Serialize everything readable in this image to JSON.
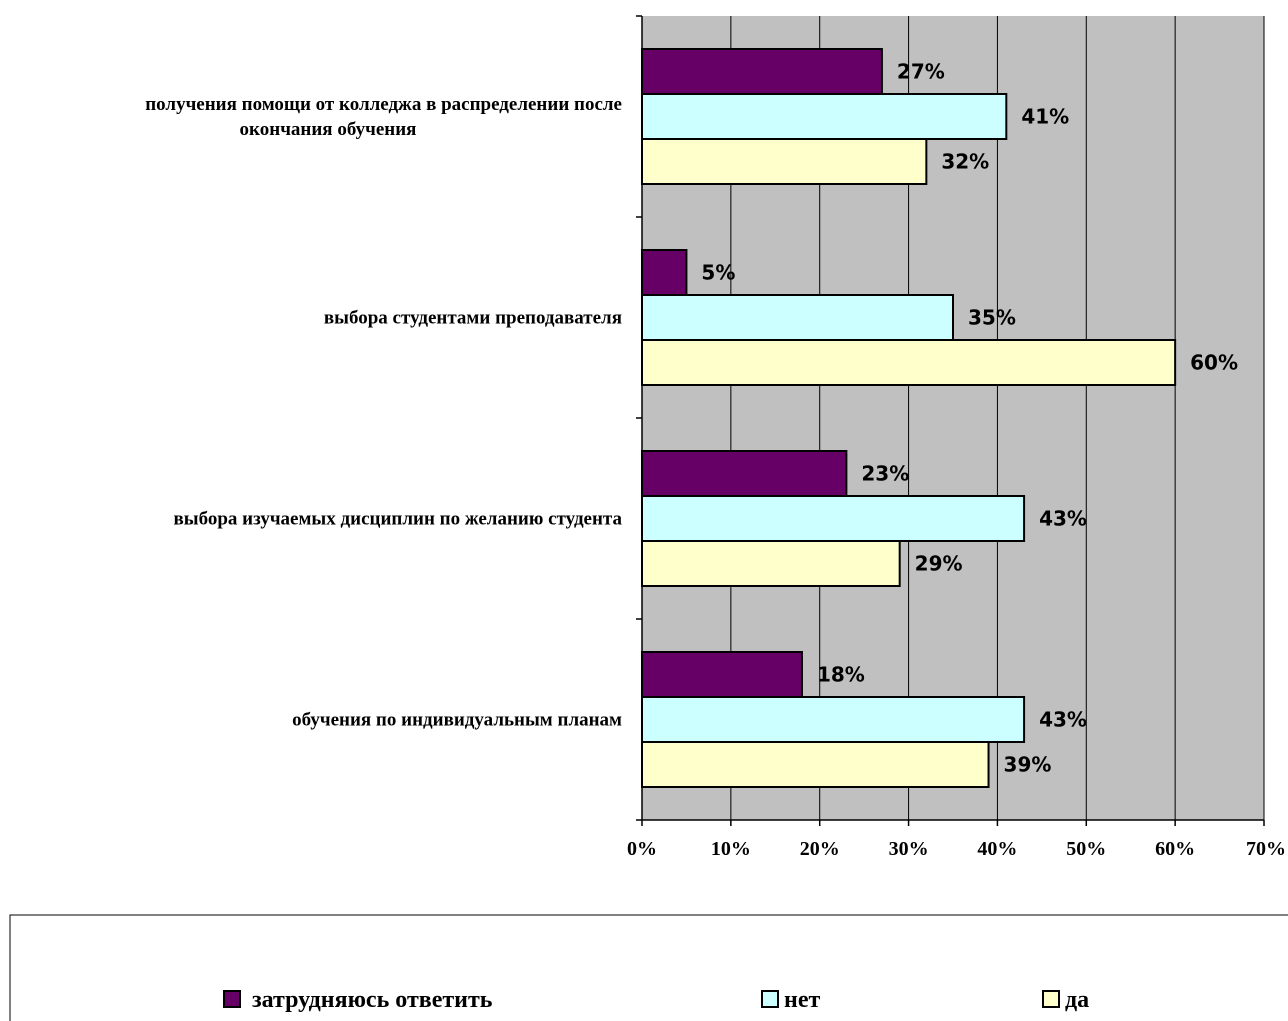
{
  "chart_data": {
    "type": "bar",
    "orientation": "horizontal",
    "categories": [
      [
        "получения помощи от колледжа в распределении после",
        "окончания обучения"
      ],
      [
        "выбора студентами преподавателя"
      ],
      [
        "выбора изучаемых дисциплин по желанию студента"
      ],
      [
        "обучения по индивидуальным планам"
      ]
    ],
    "series": [
      {
        "name": "затрудняюсь ответить",
        "color": "#660066",
        "values": [
          27,
          5,
          23,
          18
        ]
      },
      {
        "name": "нет",
        "color": "#ccffff",
        "values": [
          41,
          35,
          43,
          43
        ]
      },
      {
        "name": "да",
        "color": "#ffffcc",
        "values": [
          32,
          60,
          29,
          39
        ]
      }
    ],
    "x_ticks": [
      "0%",
      "10%",
      "20%",
      "30%",
      "40%",
      "50%",
      "60%",
      "70%"
    ],
    "xlim": [
      0,
      70
    ],
    "value_suffix": "%",
    "grid": true,
    "plot_background": "#c0c0c0",
    "legend_position": "bottom"
  }
}
